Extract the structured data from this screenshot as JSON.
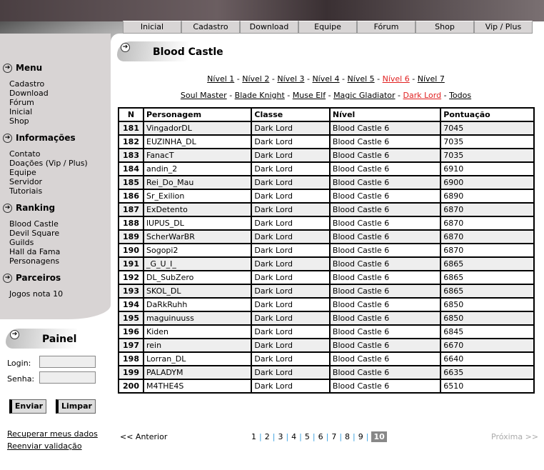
{
  "nav": [
    "Inicial",
    "Cadastro",
    "Download",
    "Equipe",
    "Fórum",
    "Shop",
    "Vip / Plus"
  ],
  "sidebar": {
    "menu": {
      "title": "Menu",
      "items": [
        "Cadastro",
        "Download",
        "Fórum",
        "Inicial",
        "Shop"
      ]
    },
    "info": {
      "title": "Informações",
      "items": [
        "Contato",
        "Doações (Vip / Plus)",
        "Equipe",
        "Servidor",
        "Tutoriais"
      ]
    },
    "ranking": {
      "title": "Ranking",
      "items": [
        "Blood Castle",
        "Devil Square",
        "Guilds",
        "Hall da Fama",
        "Personagens"
      ]
    },
    "parceiros": {
      "title": "Parceiros",
      "items": [
        "Jogos nota 10"
      ]
    }
  },
  "painel": {
    "title": "Painel",
    "login_label": "Login:",
    "senha_label": "Senha:",
    "login_value": "",
    "senha_value": "",
    "enviar": "Enviar",
    "limpar": "Limpar",
    "recuperar": "Recuperar meus dados",
    "reenviar": "Reenviar validação"
  },
  "page_title": "Blood Castle",
  "levels": {
    "items": [
      "Nível 1",
      "Nível 2",
      "Nível 3",
      "Nível 4",
      "Nível 5",
      "Nível 6",
      "Nível 7"
    ],
    "selected": "Nível 6"
  },
  "classes": {
    "items": [
      "Soul Master",
      "Blade Knight",
      "Muse Elf",
      "Magic Gladiator",
      "Dark Lord",
      "Todos"
    ],
    "selected": "Dark Lord"
  },
  "table": {
    "headers": [
      "N",
      "Personagem",
      "Classe",
      "Nível",
      "Pontuação"
    ],
    "rows": [
      [
        "181",
        "VingadorDL",
        "Dark Lord",
        "Blood Castle 6",
        "7045"
      ],
      [
        "182",
        "EUZINHA_DL",
        "Dark Lord",
        "Blood Castle 6",
        "7035"
      ],
      [
        "183",
        "FanacT",
        "Dark Lord",
        "Blood Castle 6",
        "7035"
      ],
      [
        "184",
        "andin_2",
        "Dark Lord",
        "Blood Castle 6",
        "6910"
      ],
      [
        "185",
        "Rei_Do_Mau",
        "Dark Lord",
        "Blood Castle 6",
        "6900"
      ],
      [
        "186",
        "Sr_Exilion",
        "Dark Lord",
        "Blood Castle 6",
        "6890"
      ],
      [
        "187",
        "ExDetento",
        "Dark Lord",
        "Blood Castle 6",
        "6870"
      ],
      [
        "188",
        "lUPUS_DL",
        "Dark Lord",
        "Blood Castle 6",
        "6870"
      ],
      [
        "189",
        "ScherWarBR",
        "Dark Lord",
        "Blood Castle 6",
        "6870"
      ],
      [
        "190",
        "Sogopi2",
        "Dark Lord",
        "Blood Castle 6",
        "6870"
      ],
      [
        "191",
        "_G_U_I_",
        "Dark Lord",
        "Blood Castle 6",
        "6865"
      ],
      [
        "192",
        "DL_SubZero",
        "Dark Lord",
        "Blood Castle 6",
        "6865"
      ],
      [
        "193",
        "SKOL_DL",
        "Dark Lord",
        "Blood Castle 6",
        "6865"
      ],
      [
        "194",
        "DaRkRuhh",
        "Dark Lord",
        "Blood Castle 6",
        "6850"
      ],
      [
        "195",
        "maguinuuss",
        "Dark Lord",
        "Blood Castle 6",
        "6850"
      ],
      [
        "196",
        "Kiden",
        "Dark Lord",
        "Blood Castle 6",
        "6845"
      ],
      [
        "197",
        "rein",
        "Dark Lord",
        "Blood Castle 6",
        "6670"
      ],
      [
        "198",
        "Lorran_DL",
        "Dark Lord",
        "Blood Castle 6",
        "6640"
      ],
      [
        "199",
        "PALADYM",
        "Dark Lord",
        "Blood Castle 6",
        "6635"
      ],
      [
        "200",
        "M4THE4S",
        "Dark Lord",
        "Blood Castle 6",
        "6510"
      ]
    ]
  },
  "pager": {
    "prev": "<< Anterior",
    "next": "Próxima >>",
    "pages": [
      "1",
      "2",
      "3",
      "4",
      "5",
      "6",
      "7",
      "8",
      "9",
      "10"
    ],
    "current": "10"
  },
  "icons": {
    "section": "circle-arrow-right-icon"
  }
}
